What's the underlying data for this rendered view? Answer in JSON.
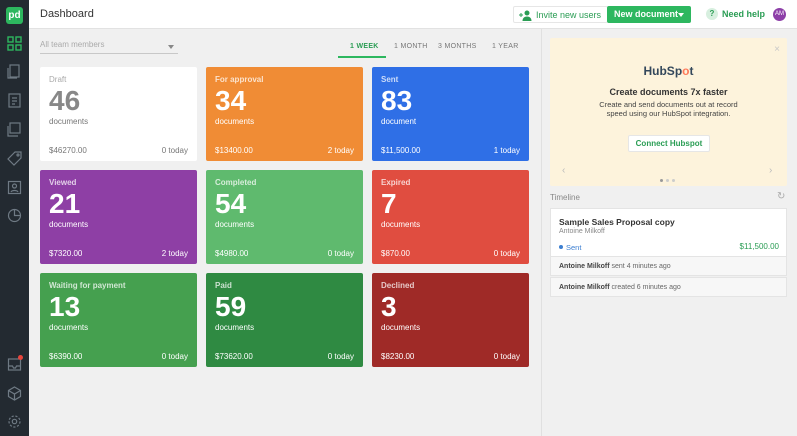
{
  "header": {
    "title": "Dashboard",
    "invite_label": "Invite new users",
    "new_document_label": "New document",
    "help_label": "Need help",
    "avatar_initials": "AM"
  },
  "rail": {
    "logo": "pd",
    "icons": [
      "dashboard-icon",
      "documents-icon",
      "templates-icon",
      "content-library-icon",
      "catalog-icon",
      "contacts-icon",
      "reports-icon",
      "inbox-icon",
      "integrations-icon",
      "settings-icon"
    ]
  },
  "filters": {
    "members_placeholder": "All team members",
    "ranges": [
      "1 WEEK",
      "1 MONTH",
      "3 MONTHS",
      "1 YEAR"
    ],
    "active_range": "1 WEEK"
  },
  "cards": [
    {
      "label": "Draft",
      "count": "46",
      "unit": "documents",
      "amount": "$46270.00",
      "today": "0 today",
      "color": "#ffffff"
    },
    {
      "label": "For approval",
      "count": "34",
      "unit": "documents",
      "amount": "$13400.00",
      "today": "2 today",
      "color": "#f08c35"
    },
    {
      "label": "Sent",
      "count": "83",
      "unit": "document",
      "amount": "$11,500.00",
      "today": "1 today",
      "color": "#2f6fe6"
    },
    {
      "label": "Viewed",
      "count": "21",
      "unit": "documents",
      "amount": "$7320.00",
      "today": "2 today",
      "color": "#8e3fa5"
    },
    {
      "label": "Completed",
      "count": "54",
      "unit": "documents",
      "amount": "$4980.00",
      "today": "0 today",
      "color": "#5fba6e"
    },
    {
      "label": "Expired",
      "count": "7",
      "unit": "documents",
      "amount": "$870.00",
      "today": "0 today",
      "color": "#e04d40"
    },
    {
      "label": "Waiting for payment",
      "count": "13",
      "unit": "documents",
      "amount": "$6390.00",
      "today": "0 today",
      "color": "#45a04f"
    },
    {
      "label": "Paid",
      "count": "59",
      "unit": "documents",
      "amount": "$73620.00",
      "today": "0 today",
      "color": "#2f8a42"
    },
    {
      "label": "Declined",
      "count": "3",
      "unit": "documents",
      "amount": "$8230.00",
      "today": "0 today",
      "color": "#9f2a27"
    }
  ],
  "promo": {
    "brand_prefix": "HubSp",
    "brand_o": "o",
    "brand_suffix": "t",
    "headline": "Create documents 7x faster",
    "description": "Create and send documents out at record speed using our HubSpot integration.",
    "button_label": "Connect Hubspot",
    "close_glyph": "×",
    "prev_glyph": "‹",
    "next_glyph": "›"
  },
  "timeline": {
    "title": "Timeline",
    "refresh_glyph": "↻",
    "card": {
      "title": "Sample Sales Proposal copy",
      "author": "Antoine Milkoff",
      "status": "Sent",
      "value": "$11,500.00"
    },
    "events": [
      {
        "who": "Antoine Milkoff",
        "what": "sent 4 minutes ago"
      },
      {
        "who": "Antoine Milkoff",
        "what": "created 6 minutes ago"
      }
    ]
  }
}
